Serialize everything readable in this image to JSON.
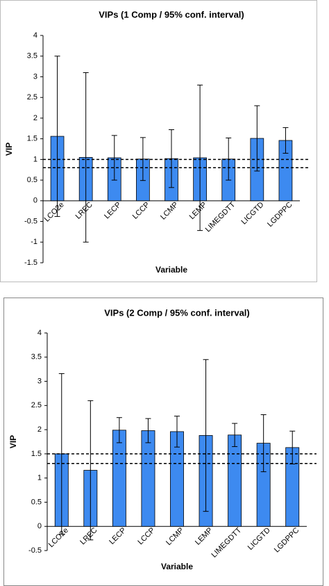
{
  "chart_data": [
    {
      "type": "bar",
      "title": "VIPs (1 Comp / 95% conf. interval)",
      "x_label": "Variable",
      "y_label": "VIP",
      "categories": [
        "LCO2e",
        "LREC",
        "LECP",
        "LCCP",
        "LCMP",
        "LEMP",
        "LIMEGDTT",
        "LICGTD",
        "LGDPPC"
      ],
      "values": [
        1.56,
        1.05,
        1.04,
        1.01,
        1.02,
        1.04,
        1.01,
        1.51,
        1.46
      ],
      "errors": [
        1.94,
        2.05,
        0.54,
        0.52,
        0.7,
        1.76,
        0.51,
        0.79,
        0.31
      ],
      "reference_lines": [
        1,
        0.8
      ],
      "color": "#3d8af0",
      "ylim": [
        -1.5,
        4
      ],
      "yticks": [
        -1.5,
        -1,
        -0.5,
        0,
        0.5,
        1,
        1.5,
        2,
        2.5,
        3,
        3.5,
        4
      ]
    },
    {
      "type": "bar",
      "title": "VIPs (2 Comp / 95% conf. interval)",
      "x_label": "Variable",
      "y_label": "VIP",
      "categories": [
        "LCO2e",
        "LREC",
        "LECP",
        "LCCP",
        "LCMP",
        "LEMP",
        "LIMEGDTT",
        "LICGTD",
        "LGDPPC"
      ],
      "values": [
        1.5,
        1.16,
        1.99,
        1.98,
        1.96,
        1.88,
        1.89,
        1.72,
        1.63
      ],
      "errors": [
        1.66,
        1.44,
        0.26,
        0.25,
        0.32,
        1.57,
        0.24,
        0.59,
        0.34
      ],
      "reference_lines": [
        1.5,
        1.3
      ],
      "color": "#3d8af0",
      "ylim": [
        -0.5,
        4
      ],
      "yticks": [
        -0.5,
        0,
        0.5,
        1,
        1.5,
        2,
        2.5,
        3,
        3.5,
        4
      ]
    }
  ]
}
